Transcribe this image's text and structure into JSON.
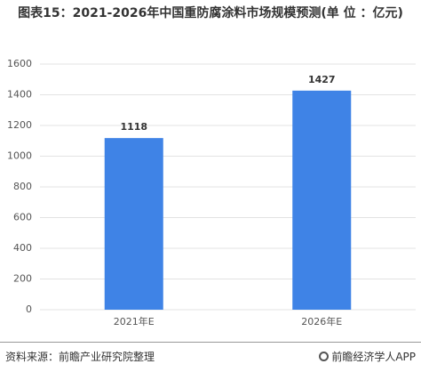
{
  "chart_data": {
    "type": "bar",
    "title": "图表15：2021-2026年中国重防腐涂料市场规模预测(单 位 ：亿元)",
    "categories": [
      "2021年E",
      "2026年E"
    ],
    "values": [
      1118,
      1427
    ],
    "color": "#3f83e6",
    "ylim": [
      0,
      1600
    ],
    "yticks": [
      0,
      200,
      400,
      600,
      800,
      1000,
      1200,
      1400,
      1600
    ],
    "grid": true,
    "source": "资料来源：前瞻产业研究院整理",
    "brand": "前瞻经济学人APP"
  }
}
